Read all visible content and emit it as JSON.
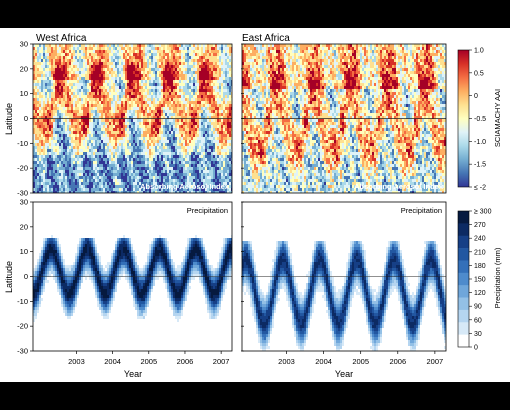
{
  "panels": {
    "west_title": "West Africa",
    "east_title": "East Africa",
    "aai_label": "Absorbing Aerosol Index",
    "precip_label": "Precipitation"
  },
  "axes": {
    "ylabel": "Latitude",
    "xlabel": "Year",
    "top_lat_ticks": [
      "30",
      "20",
      "10",
      "0",
      "-10",
      "-20",
      "-30"
    ],
    "bottom_lat_ticks": [
      "30",
      "20",
      "10",
      "0",
      "-10",
      "-20",
      "-30"
    ],
    "year_ticks": [
      "2003",
      "2004",
      "2005",
      "2006",
      "2007"
    ]
  },
  "colorbars": {
    "aai": {
      "label": "SCIAMACHY AAI",
      "ticks": [
        "1.0",
        "0.5",
        "0",
        "-0.5",
        "-1.0",
        "-1.5",
        "≤ -2"
      ],
      "colors": [
        "#313695",
        "#4575b4",
        "#74add1",
        "#abd9e9",
        "#e0f3f8",
        "#ffffbf",
        "#fee090",
        "#fdae61",
        "#f46d43",
        "#d73027",
        "#a50026"
      ]
    },
    "precip": {
      "label": "Precipitation (mm)",
      "ticks": [
        "≥ 300",
        "270",
        "240",
        "210",
        "180",
        "150",
        "120",
        "90",
        "60",
        "30",
        "0"
      ],
      "colors": [
        "#ffffff",
        "#d7e9f7",
        "#b5d5f0",
        "#93c0e6",
        "#6fa6da",
        "#4e8bcc",
        "#3470b9",
        "#2257a1",
        "#163f86",
        "#0c2a63",
        "#061a40"
      ]
    }
  },
  "chart_data": [
    {
      "type": "heatmap",
      "title": "West Africa",
      "annotation": "Absorbing Aerosol Index",
      "ylabel": "Latitude",
      "ylim": [
        -30,
        30
      ],
      "xlim": [
        2002.3,
        2007.8
      ],
      "colorbar_label": "SCIAMACHY AAI",
      "zlim": [
        -2,
        1
      ],
      "yearly_peak_lat": [
        12,
        12,
        12,
        12,
        12
      ],
      "yearly_trough_lat": [
        -12,
        -12,
        -12,
        -12,
        -12
      ]
    },
    {
      "type": "heatmap",
      "title": "East Africa",
      "annotation": "Absorbing Aerosol Index",
      "ylim": [
        -30,
        30
      ],
      "xlim": [
        2002.3,
        2007.8
      ],
      "colorbar_label": "SCIAMACHY AAI",
      "zlim": [
        -2,
        1
      ]
    },
    {
      "type": "heatmap",
      "annotation": "Precipitation",
      "xlabel": "Year",
      "ylabel": "Latitude",
      "ylim": [
        -30,
        30
      ],
      "xlim": [
        2002.3,
        2007.8
      ],
      "x_ticks": [
        2003,
        2004,
        2005,
        2006,
        2007
      ],
      "colorbar_label": "Precipitation (mm)",
      "zlim": [
        0,
        300
      ],
      "band_lat_range": [
        -20,
        15
      ]
    },
    {
      "type": "heatmap",
      "annotation": "Precipitation",
      "xlabel": "Year",
      "ylim": [
        -30,
        30
      ],
      "xlim": [
        2002.3,
        2007.8
      ],
      "x_ticks": [
        2003,
        2004,
        2005,
        2006,
        2007
      ],
      "colorbar_label": "Precipitation (mm)",
      "zlim": [
        0,
        300
      ],
      "band_lat_range": [
        -28,
        12
      ]
    }
  ]
}
